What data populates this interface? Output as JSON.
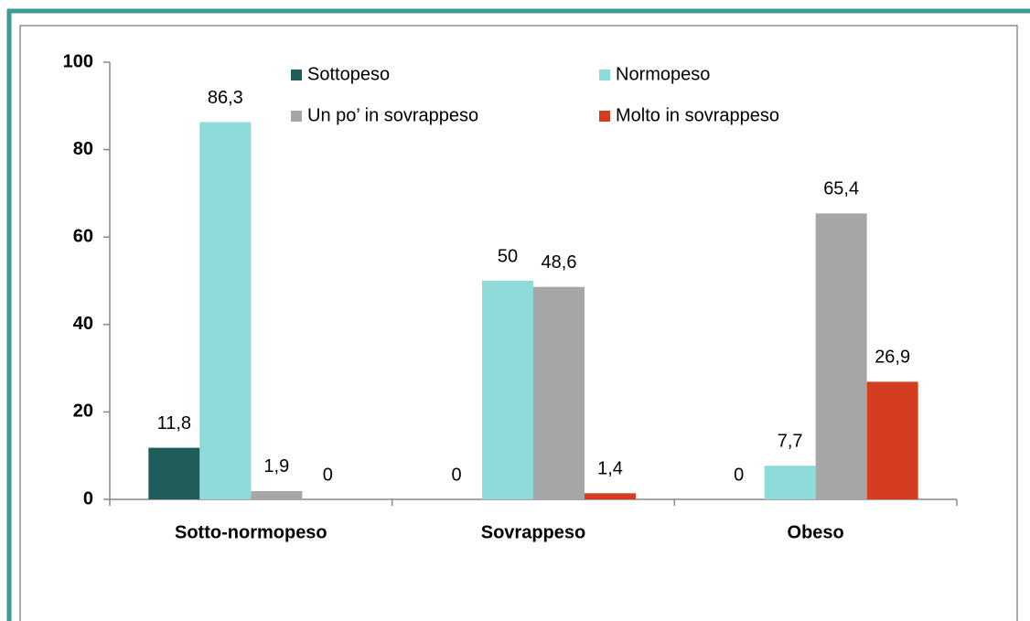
{
  "chart_data": {
    "type": "bar",
    "categories": [
      "Sotto-normopeso",
      "Sovrappeso",
      "Obeso"
    ],
    "series": [
      {
        "name": "Sottopeso",
        "color": "#1f5c5a",
        "values": [
          11.8,
          0,
          0
        ],
        "value_labels": [
          "11,8",
          "0",
          "0"
        ]
      },
      {
        "name": "Normopeso",
        "color": "#8fdbd9",
        "values": [
          86.3,
          50,
          7.7
        ],
        "value_labels": [
          "86,3",
          "50",
          "7,7"
        ]
      },
      {
        "name": "Un po’ in sovrappeso",
        "color": "#a6a6a6",
        "values": [
          1.9,
          48.6,
          65.4
        ],
        "value_labels": [
          "1,9",
          "48,6",
          "65,4"
        ]
      },
      {
        "name": "Molto in sovrappeso",
        "color": "#d43d1f",
        "values": [
          0,
          1.4,
          26.9
        ],
        "value_labels": [
          "0",
          "1,4",
          "26,9"
        ]
      }
    ],
    "ylim": [
      0,
      100
    ],
    "yticks": [
      0,
      20,
      40,
      60,
      80,
      100
    ],
    "grid": false
  }
}
